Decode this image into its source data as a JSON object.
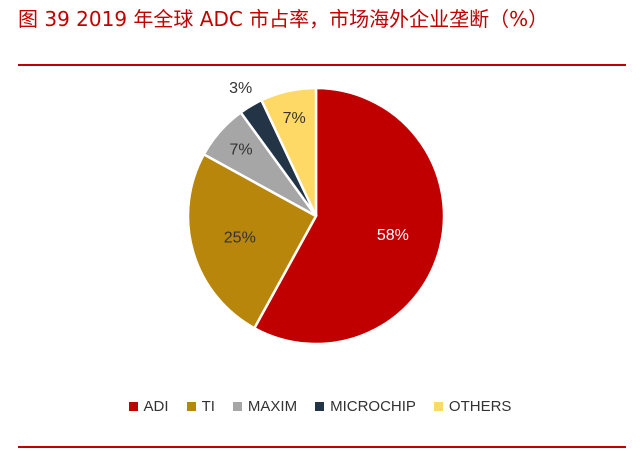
{
  "title": "图 39 2019 年全球 ADC 市占率，市场海外企业垄断（%）",
  "chart_data": {
    "type": "pie",
    "title": "图 39 2019 年全球 ADC 市占率，市场海外企业垄断（%）",
    "legend_position": "bottom",
    "start_angle_deg": 0,
    "direction": "clockwise",
    "slices": [
      {
        "label": "ADI",
        "value": 58,
        "display": "58%",
        "color": "#C00000",
        "text_color": "#ffffff"
      },
      {
        "label": "TI",
        "value": 25,
        "display": "25%",
        "color": "#B8860B",
        "text_color": "#333333"
      },
      {
        "label": "MAXIM",
        "value": 7,
        "display": "7%",
        "color": "#A6A6A6",
        "text_color": "#333333"
      },
      {
        "label": "MICROCHIP",
        "value": 3,
        "display": "3%",
        "color": "#243447",
        "text_color": "#333333",
        "label_outside": true
      },
      {
        "label": "OTHERS",
        "value": 7,
        "display": "7%",
        "color": "#FFD966",
        "text_color": "#333333"
      }
    ]
  }
}
